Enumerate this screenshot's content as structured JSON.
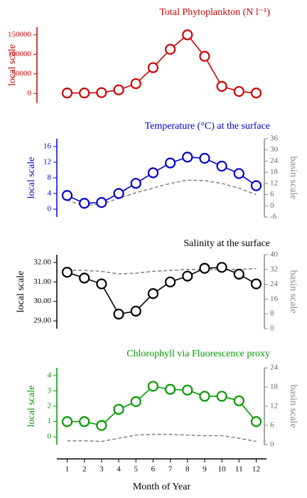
{
  "chart_data": [
    {
      "type": "line",
      "title": "Total Phytoplankton (N l⁻¹)",
      "ylabel": "local scale",
      "x": [
        1,
        2,
        3,
        4,
        5,
        6,
        7,
        8,
        9,
        10,
        11,
        12
      ],
      "xlim": [
        0.4,
        12.6
      ],
      "ylim": [
        -25000,
        170000
      ],
      "yticks": [
        0,
        50000,
        100000,
        150000
      ],
      "series": [
        {
          "name": "Total Phytoplankton",
          "color": "#cc0000",
          "marker": "circle",
          "linestyle": "solid",
          "values": [
            1000,
            1000,
            2000,
            9000,
            25000,
            66000,
            113000,
            150000,
            95000,
            18000,
            5000,
            1000
          ]
        }
      ]
    },
    {
      "type": "line",
      "title": "Temperature (°C) at the surface",
      "ylabel": "local scale",
      "y2label": "basin scale",
      "x": [
        1,
        2,
        3,
        4,
        5,
        6,
        7,
        8,
        9,
        10,
        11,
        12
      ],
      "xlim": [
        0.4,
        12.6
      ],
      "ylim": [
        -2,
        18
      ],
      "yticks": [
        0,
        4,
        8,
        12,
        16
      ],
      "y2lim": [
        -6,
        36
      ],
      "y2ticks": [
        -6,
        0,
        6,
        12,
        18,
        24,
        30,
        36
      ],
      "series": [
        {
          "name": "local",
          "color": "#0000cc",
          "marker": "circle",
          "linestyle": "solid",
          "values": [
            3.5,
            1.5,
            1.7,
            4.0,
            6.6,
            9.3,
            11.8,
            13.3,
            13.0,
            11.0,
            9.1,
            6.0
          ]
        },
        {
          "name": "basin",
          "color": "#888888",
          "marker": "none",
          "linestyle": "dashed",
          "axis": "y2",
          "values": [
            3,
            0,
            1,
            4,
            7,
            9.5,
            12,
            13.8,
            13.5,
            12,
            9.5,
            6
          ]
        }
      ]
    },
    {
      "type": "line",
      "title": "Salinity at the surface",
      "ylabel": "local scale",
      "y2label": "basin scale",
      "x": [
        1,
        2,
        3,
        4,
        5,
        6,
        7,
        8,
        9,
        10,
        11,
        12
      ],
      "xlim": [
        0.4,
        12.6
      ],
      "ylim": [
        28.6,
        32.4
      ],
      "yticks": [
        {
          "value": 29,
          "label": "29.00"
        },
        {
          "value": 30,
          "label": "30.00"
        },
        {
          "value": 31,
          "label": "31.00"
        },
        {
          "value": 32,
          "label": "32.00"
        }
      ],
      "y2lim": [
        0,
        40
      ],
      "y2ticks": [
        0,
        8,
        16,
        24,
        32,
        40
      ],
      "series": [
        {
          "name": "local",
          "color": "#000000",
          "marker": "circle",
          "linestyle": "solid",
          "values": [
            31.5,
            31.2,
            30.9,
            29.35,
            29.5,
            30.4,
            31.0,
            31.3,
            31.7,
            31.75,
            31.4,
            30.9
          ]
        },
        {
          "name": "basin",
          "color": "#888888",
          "marker": "none",
          "linestyle": "dashed",
          "axis": "y2",
          "values": [
            31.5,
            31.5,
            31,
            29.6,
            30,
            31,
            31.5,
            32,
            32,
            32,
            32,
            32.5
          ]
        }
      ]
    },
    {
      "type": "line",
      "title": "Chlorophyll via Fluorescence proxy",
      "ylabel": "local scale",
      "y2label": "basin scale",
      "xlabel": "Month of Year",
      "x": [
        1,
        2,
        3,
        4,
        5,
        6,
        7,
        8,
        9,
        10,
        11,
        12
      ],
      "xlim": [
        0.4,
        12.6
      ],
      "xticks": [
        1,
        2,
        3,
        4,
        5,
        6,
        7,
        8,
        9,
        10,
        11,
        12
      ],
      "ylim": [
        -0.5,
        4.5
      ],
      "yticks": [
        0,
        1,
        2,
        3,
        4
      ],
      "y2lim": [
        0,
        24
      ],
      "y2ticks": [
        0,
        6,
        12,
        18,
        24
      ],
      "series": [
        {
          "name": "local",
          "color": "#009900",
          "marker": "circle",
          "linestyle": "solid",
          "values": [
            1.0,
            1.0,
            0.75,
            1.8,
            2.3,
            3.3,
            3.1,
            3.05,
            2.65,
            2.65,
            2.35,
            1.0
          ]
        },
        {
          "name": "basin",
          "color": "#888888",
          "marker": "none",
          "linestyle": "dashed",
          "axis": "y2",
          "values": [
            1.2,
            1.2,
            1,
            2,
            3,
            3.2,
            3.2,
            3,
            2.8,
            2.8,
            2,
            1
          ]
        }
      ]
    }
  ]
}
